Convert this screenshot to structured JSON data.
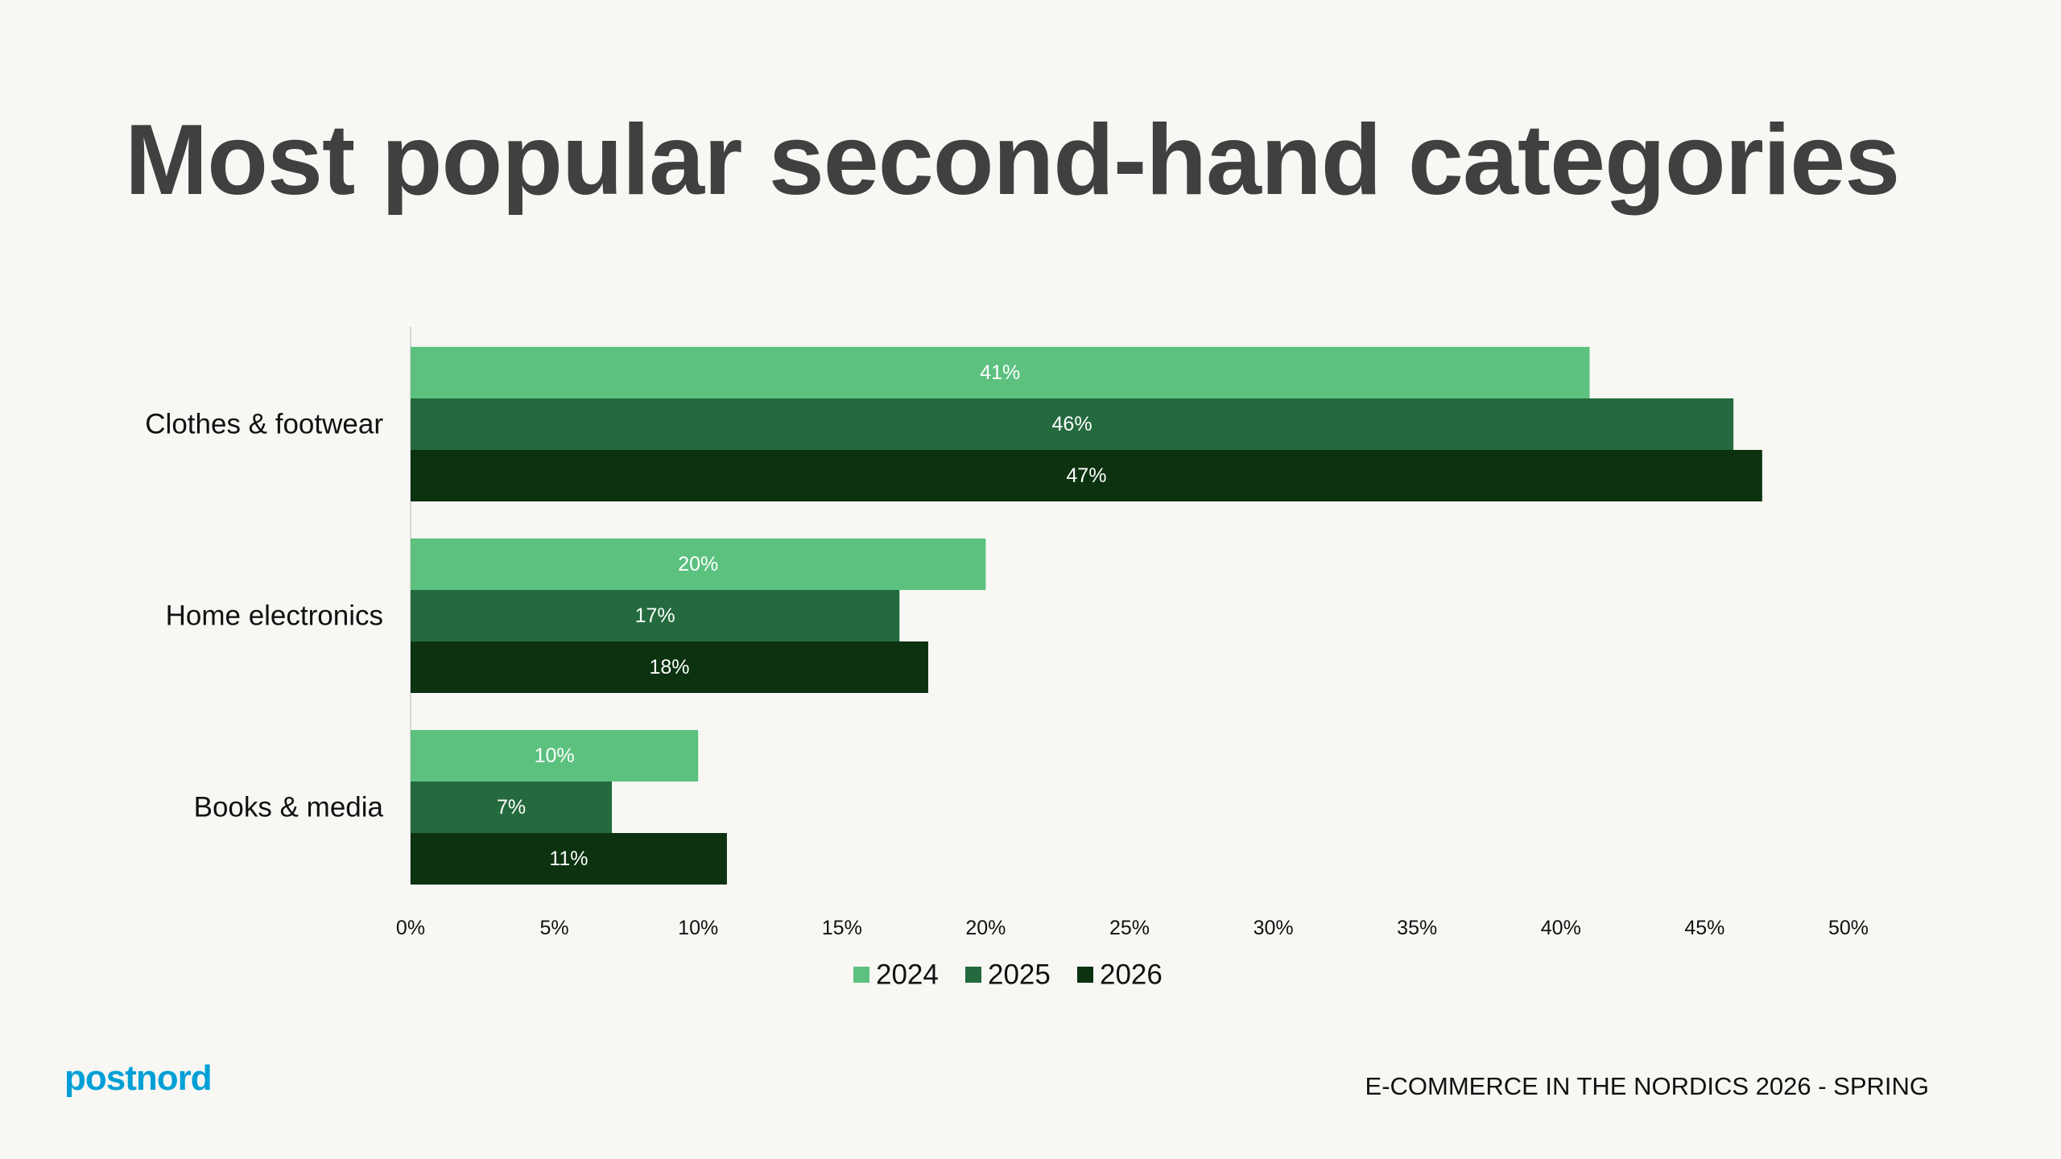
{
  "page": {
    "title": "Most popular second-hand categories",
    "logo_text": "postnord",
    "footer_text": "E-COMMERCE IN THE NORDICS 2026 - SPRING"
  },
  "colors": {
    "background": "#f8f7f4",
    "title": "#404040",
    "logo": "#00a0d6"
  },
  "chart_data": {
    "type": "bar",
    "orientation": "horizontal",
    "categories": [
      "Clothes & footwear",
      "Home electronics",
      "Books & media"
    ],
    "series": [
      {
        "name": "2024",
        "color": "#5cc17f",
        "values": [
          41,
          20,
          10
        ]
      },
      {
        "name": "2025",
        "color": "#246a3e",
        "values": [
          46,
          17,
          7
        ]
      },
      {
        "name": "2026",
        "color": "#0c3210",
        "values": [
          47,
          18,
          11
        ]
      }
    ],
    "value_unit": "%",
    "xlim": [
      0,
      50
    ],
    "xticks": [
      0,
      5,
      10,
      15,
      20,
      25,
      30,
      35,
      40,
      45,
      50
    ],
    "xtick_labels": [
      "0%",
      "5%",
      "10%",
      "15%",
      "20%",
      "25%",
      "30%",
      "35%",
      "40%",
      "45%",
      "50%"
    ],
    "data_labels": [
      [
        "41%",
        "20%",
        "10%"
      ],
      [
        "46%",
        "17%",
        "7%"
      ],
      [
        "47%",
        "18%",
        "11%"
      ]
    ],
    "grid": false,
    "legend_position": "bottom"
  }
}
